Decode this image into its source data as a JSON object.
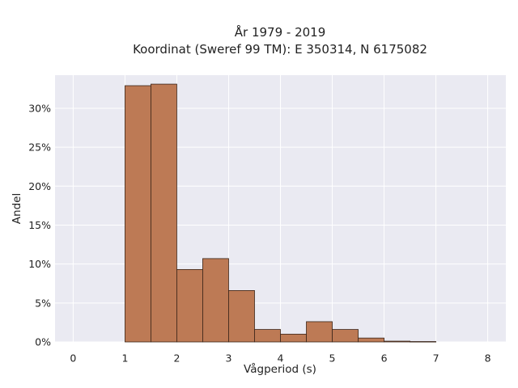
{
  "chart_data": {
    "type": "bar",
    "title_lines": [
      "År 1979 - 2019",
      "Koordinat (Sweref 99 TM): E 350314, N 6175082"
    ],
    "xlabel": "Vågperiod (s)",
    "ylabel": "Andel",
    "xlim": [
      -0.35,
      8.35
    ],
    "ylim": [
      0,
      0.3425
    ],
    "x_ticks": [
      0,
      1,
      2,
      3,
      4,
      5,
      6,
      7,
      8
    ],
    "x_tick_labels": [
      "0",
      "1",
      "2",
      "3",
      "4",
      "5",
      "6",
      "7",
      "8"
    ],
    "y_ticks": [
      0,
      0.05,
      0.1,
      0.15,
      0.2,
      0.25,
      0.3
    ],
    "y_tick_labels": [
      "0%",
      "5%",
      "10%",
      "15%",
      "20%",
      "25%",
      "30%"
    ],
    "bin_width": 0.5,
    "bins": [
      {
        "start": 1.0,
        "value": 0.329
      },
      {
        "start": 1.5,
        "value": 0.331
      },
      {
        "start": 2.0,
        "value": 0.093
      },
      {
        "start": 2.5,
        "value": 0.107
      },
      {
        "start": 3.0,
        "value": 0.066
      },
      {
        "start": 3.5,
        "value": 0.016
      },
      {
        "start": 4.0,
        "value": 0.01
      },
      {
        "start": 4.5,
        "value": 0.026
      },
      {
        "start": 5.0,
        "value": 0.016
      },
      {
        "start": 5.5,
        "value": 0.005
      },
      {
        "start": 6.0,
        "value": 0.001
      },
      {
        "start": 6.5,
        "value": 0.0005
      }
    ],
    "grid": true,
    "colors": {
      "bar_fill": "#bd7a55",
      "bar_edge": "#3a2418",
      "plot_background": "#eaeaf2",
      "grid": "#ffffff"
    }
  }
}
